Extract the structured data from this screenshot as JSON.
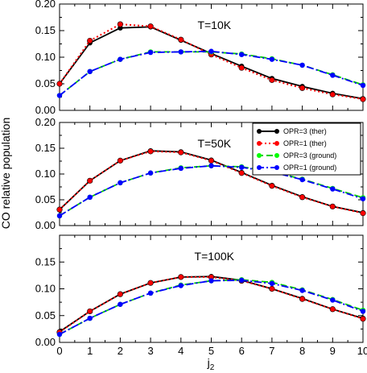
{
  "chart_data": {
    "type": "line",
    "ylabel": "CO relative population",
    "xlabel_main": "j",
    "xlabel_sub": "2",
    "x": [
      0,
      1,
      2,
      3,
      4,
      5,
      6,
      7,
      8,
      9,
      10
    ],
    "xlim": [
      0,
      10
    ],
    "x_ticks": [
      "0",
      "1",
      "2",
      "3",
      "4",
      "5",
      "6",
      "7",
      "8",
      "9",
      "10"
    ],
    "legend": [
      {
        "key": "s1",
        "label": "OPR=3 (ther)"
      },
      {
        "key": "s2",
        "label": "OPR=1 (ther)"
      },
      {
        "key": "s3",
        "label": "OPR=3 (ground)"
      },
      {
        "key": "s4",
        "label": "OPR=1 (ground)"
      }
    ],
    "styles": {
      "s1": {
        "line": "#000000",
        "marker": "#000000",
        "dash": "none"
      },
      "s2": {
        "line": "#ff0000",
        "marker": "#ff0000",
        "dash": "2,3"
      },
      "s3": {
        "line": "#00cc00",
        "marker": "#00ff00",
        "dash": "8,4"
      },
      "s4": {
        "line": "#0000ff",
        "marker": "#0000ff",
        "dash": "9,3,2,3"
      }
    },
    "panels": [
      {
        "label": "T=10K",
        "ylim": [
          0,
          0.2
        ],
        "y_ticks": [
          "0.00",
          "0.05",
          "0.10",
          "0.15",
          "0.20"
        ],
        "series": {
          "s1": [
            0.05,
            0.127,
            0.155,
            0.157,
            0.132,
            0.107,
            0.083,
            0.06,
            0.045,
            0.032,
            0.022
          ],
          "s2": [
            0.05,
            0.131,
            0.162,
            0.158,
            0.133,
            0.105,
            0.08,
            0.057,
            0.042,
            0.03,
            0.021
          ],
          "s3": [
            0.028,
            0.073,
            0.096,
            0.11,
            0.11,
            0.11,
            0.106,
            0.097,
            0.085,
            0.067,
            0.048
          ],
          "s4": [
            0.028,
            0.073,
            0.096,
            0.109,
            0.11,
            0.111,
            0.105,
            0.096,
            0.085,
            0.066,
            0.047
          ]
        }
      },
      {
        "label": "T=50K",
        "ylim": [
          0,
          0.2
        ],
        "y_ticks": [
          "0.00",
          "0.05",
          "0.10",
          "0.15",
          "0.20"
        ],
        "series": {
          "s1": [
            0.031,
            0.087,
            0.126,
            0.145,
            0.143,
            0.127,
            0.103,
            0.078,
            0.056,
            0.037,
            0.025
          ],
          "s2": [
            0.031,
            0.087,
            0.126,
            0.144,
            0.142,
            0.126,
            0.102,
            0.077,
            0.055,
            0.037,
            0.024
          ],
          "s3": [
            0.019,
            0.055,
            0.083,
            0.102,
            0.112,
            0.116,
            0.114,
            0.105,
            0.09,
            0.072,
            0.054
          ],
          "s4": [
            0.019,
            0.055,
            0.083,
            0.102,
            0.111,
            0.116,
            0.113,
            0.104,
            0.089,
            0.071,
            0.052
          ]
        }
      },
      {
        "label": "T=100K",
        "ylim": [
          0,
          0.2
        ],
        "y_ticks": [
          "0.00",
          "0.05",
          "0.10",
          "0.15",
          ""
        ],
        "series": {
          "s1": [
            0.02,
            0.058,
            0.09,
            0.111,
            0.122,
            0.123,
            0.116,
            0.1,
            0.082,
            0.062,
            0.045
          ],
          "s2": [
            0.019,
            0.058,
            0.09,
            0.111,
            0.122,
            0.122,
            0.115,
            0.1,
            0.081,
            0.062,
            0.044
          ],
          "s3": [
            0.015,
            0.045,
            0.071,
            0.092,
            0.107,
            0.115,
            0.117,
            0.112,
            0.098,
            0.08,
            0.06
          ],
          "s4": [
            0.015,
            0.045,
            0.071,
            0.092,
            0.106,
            0.115,
            0.116,
            0.11,
            0.097,
            0.079,
            0.058
          ]
        }
      }
    ]
  }
}
